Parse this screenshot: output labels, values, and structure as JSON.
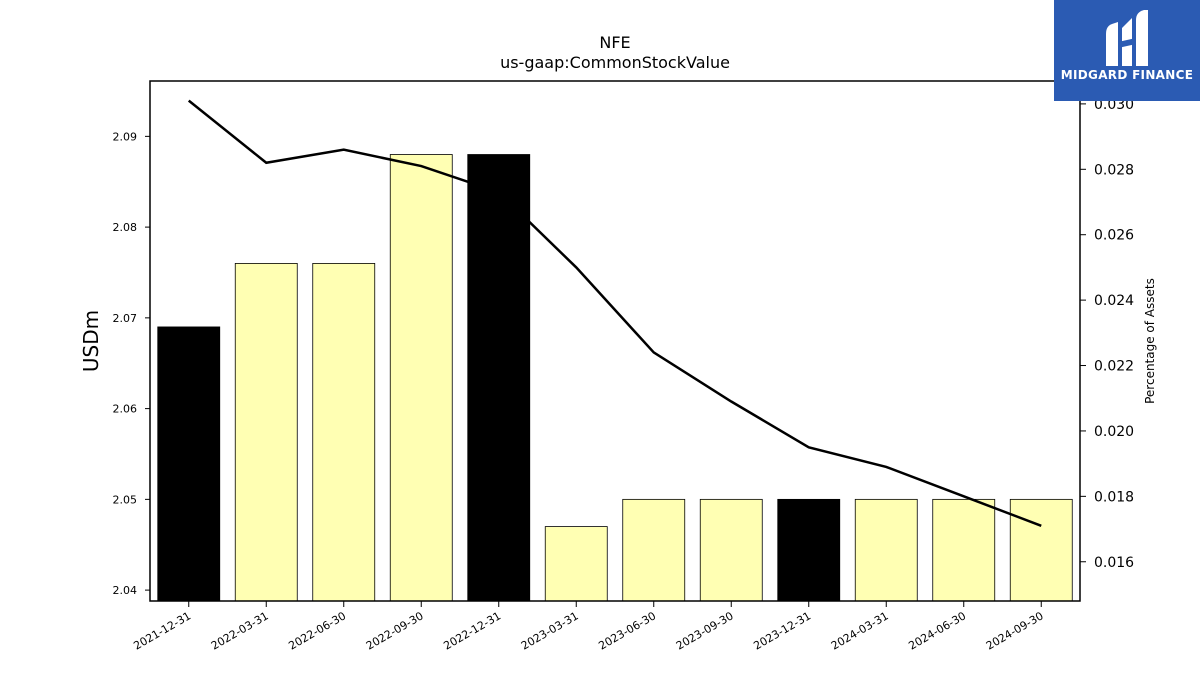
{
  "chart_data": {
    "type": "bar",
    "title": "NFE",
    "subtitle": "us-gaap:CommonStockValue",
    "ylabel": "USDm",
    "ylabel_right": "Percentage of Assets",
    "categories": [
      "2021-12-31",
      "2022-03-31",
      "2022-06-30",
      "2022-09-30",
      "2022-12-31",
      "2023-03-31",
      "2023-06-30",
      "2023-09-30",
      "2023-12-31",
      "2024-03-31",
      "2024-06-30",
      "2024-09-30"
    ],
    "series": [
      {
        "type": "bar",
        "axis": "left",
        "values": [
          2.069,
          2.076,
          2.076,
          2.088,
          2.088,
          2.047,
          2.05,
          2.05,
          2.05,
          2.05,
          2.05,
          2.05
        ],
        "colors": [
          "#000000",
          "#ffffb3",
          "#ffffb3",
          "#ffffb3",
          "#000000",
          "#ffffb3",
          "#ffffb3",
          "#ffffb3",
          "#000000",
          "#ffffb3",
          "#ffffb3",
          "#ffffb3"
        ]
      },
      {
        "type": "line",
        "axis": "right",
        "color": "#000000",
        "values": [
          0.0301,
          0.0282,
          0.0286,
          0.0281,
          0.0273,
          0.025,
          0.0224,
          0.0209,
          0.0195,
          0.0189,
          0.018,
          0.0171
        ]
      }
    ],
    "ylim": [
      2.0388,
      2.0961
    ],
    "yticks": [
      "2.04",
      "2.05",
      "2.06",
      "2.07",
      "2.08",
      "2.09"
    ],
    "y2lim": [
      0.0148,
      0.0307
    ],
    "y2ticks": [
      "0.016",
      "0.018",
      "0.020",
      "0.022",
      "0.024",
      "0.026",
      "0.028",
      "0.030"
    ],
    "grid": false,
    "legend": "none"
  },
  "logo": {
    "text": "MIDGARD FINANCE",
    "background": "#2b5bb3"
  }
}
